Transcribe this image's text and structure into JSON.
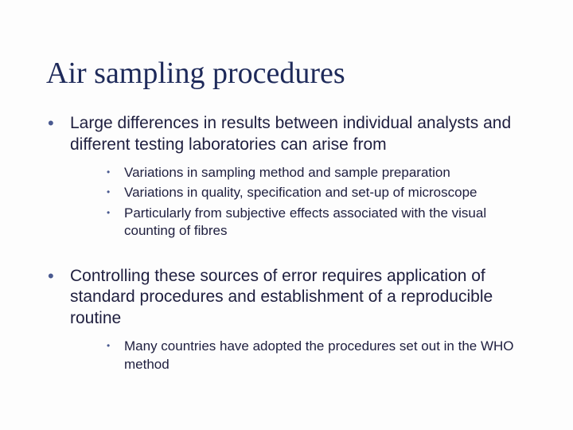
{
  "title": "Air sampling procedures",
  "bullets": [
    {
      "text": "Large differences in results between individual analysts and different testing laboratories can arise from",
      "sub": [
        "Variations in sampling method and sample preparation",
        "Variations in quality, specification and set-up of microscope",
        "Particularly from subjective effects associated with the visual counting of fibres"
      ]
    },
    {
      "text": "Controlling these sources of error requires application of standard procedures and establishment of a reproducible routine",
      "sub": [
        "Many countries have adopted the procedures set out in the WHO method"
      ]
    }
  ],
  "colors": {
    "title": "#1e2a5a",
    "body": "#202040",
    "bullet": "#4a5a90",
    "background": "#fdfdfd"
  },
  "fonts": {
    "title_family": "Times New Roman",
    "title_size_pt": 28,
    "body_family": "Verdana",
    "body_size_pt": 16,
    "sub_size_pt": 13
  }
}
